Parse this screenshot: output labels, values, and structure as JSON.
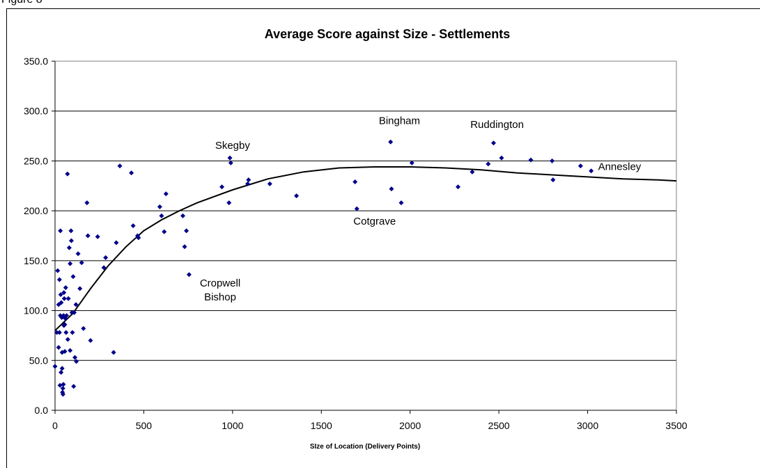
{
  "page": {
    "cut_label": "Figure 8"
  },
  "chart_data": {
    "type": "scatter",
    "title": "Average Score against Size - Settlements",
    "xlabel": "SIze of Location (Delivery Points)",
    "ylabel": "",
    "xlim": [
      0,
      3500
    ],
    "ylim": [
      0,
      350
    ],
    "x_ticks": [
      0,
      500,
      1000,
      1500,
      2000,
      2500,
      3000,
      3500
    ],
    "x_tick_labels": [
      "0",
      "500",
      "1000",
      "1500",
      "2000",
      "2500",
      "3000",
      "3500"
    ],
    "y_ticks": [
      0,
      50,
      100,
      150,
      200,
      250,
      300,
      350
    ],
    "y_tick_labels": [
      "0.0",
      "50.0",
      "100.0",
      "150.0",
      "200.0",
      "250.0",
      "300.0",
      "350.0"
    ],
    "grid": {
      "horizontal": true,
      "vertical": false
    },
    "marker_color": "#00008b",
    "trend_color": "#000000",
    "series": [
      {
        "points": [
          [
            0,
            44
          ],
          [
            10,
            78
          ],
          [
            15,
            140
          ],
          [
            20,
            106
          ],
          [
            20,
            63
          ],
          [
            25,
            131
          ],
          [
            25,
            78
          ],
          [
            28,
            25
          ],
          [
            30,
            180
          ],
          [
            30,
            95
          ],
          [
            32,
            116
          ],
          [
            34,
            38
          ],
          [
            35,
            108
          ],
          [
            38,
            93
          ],
          [
            40,
            58
          ],
          [
            40,
            42
          ],
          [
            42,
            18
          ],
          [
            44,
            22
          ],
          [
            45,
            16
          ],
          [
            47,
            26
          ],
          [
            48,
            95
          ],
          [
            50,
            118
          ],
          [
            50,
            85
          ],
          [
            52,
            112
          ],
          [
            55,
            86
          ],
          [
            55,
            59
          ],
          [
            58,
            92
          ],
          [
            60,
            123
          ],
          [
            62,
            78
          ],
          [
            65,
            95
          ],
          [
            70,
            237
          ],
          [
            72,
            71
          ],
          [
            75,
            112
          ],
          [
            80,
            163
          ],
          [
            85,
            60
          ],
          [
            85,
            147
          ],
          [
            90,
            180
          ],
          [
            92,
            170
          ],
          [
            95,
            98
          ],
          [
            98,
            78
          ],
          [
            102,
            134
          ],
          [
            105,
            24
          ],
          [
            108,
            98
          ],
          [
            112,
            53
          ],
          [
            118,
            106
          ],
          [
            120,
            49
          ],
          [
            130,
            157
          ],
          [
            140,
            122
          ],
          [
            150,
            148
          ],
          [
            160,
            82
          ],
          [
            180,
            208
          ],
          [
            185,
            175
          ],
          [
            200,
            70
          ],
          [
            240,
            174
          ],
          [
            275,
            143
          ],
          [
            285,
            153
          ],
          [
            330,
            58
          ],
          [
            345,
            168
          ],
          [
            365,
            245
          ],
          [
            430,
            238
          ],
          [
            440,
            185
          ],
          [
            465,
            175
          ],
          [
            470,
            173
          ],
          [
            590,
            204
          ],
          [
            600,
            195
          ],
          [
            615,
            179
          ],
          [
            625,
            217
          ],
          [
            720,
            195
          ],
          [
            730,
            164
          ],
          [
            740,
            180
          ],
          [
            755,
            136
          ],
          [
            940,
            224
          ],
          [
            980,
            208
          ],
          [
            985,
            253
          ],
          [
            990,
            248
          ],
          [
            1085,
            227
          ],
          [
            1090,
            231
          ],
          [
            1210,
            227
          ],
          [
            1360,
            215
          ],
          [
            1690,
            229
          ],
          [
            1700,
            202
          ],
          [
            1890,
            269
          ],
          [
            1895,
            222
          ],
          [
            1950,
            208
          ],
          [
            2010,
            248
          ],
          [
            2270,
            224
          ],
          [
            2440,
            247
          ],
          [
            2470,
            268
          ],
          [
            2515,
            253
          ],
          [
            2680,
            251
          ],
          [
            2800,
            250
          ],
          [
            2805,
            231
          ],
          [
            2960,
            245
          ],
          [
            3020,
            240
          ],
          [
            2350,
            239
          ]
        ]
      }
    ],
    "trendline": [
      [
        0,
        80
      ],
      [
        100,
        97
      ],
      [
        200,
        122
      ],
      [
        300,
        145
      ],
      [
        400,
        164
      ],
      [
        500,
        180
      ],
      [
        600,
        191
      ],
      [
        700,
        200
      ],
      [
        800,
        208
      ],
      [
        1000,
        221
      ],
      [
        1200,
        232
      ],
      [
        1400,
        239
      ],
      [
        1600,
        243
      ],
      [
        1800,
        244
      ],
      [
        2000,
        244
      ],
      [
        2200,
        243
      ],
      [
        2400,
        241
      ],
      [
        2600,
        238
      ],
      [
        2800,
        236
      ],
      [
        3000,
        234
      ],
      [
        3200,
        232
      ],
      [
        3400,
        231
      ],
      [
        3500,
        230
      ]
    ],
    "annotations": [
      {
        "lines": [
          "Skegby"
        ],
        "x": 1000,
        "y": 262
      },
      {
        "lines": [
          "Bingham"
        ],
        "x": 1940,
        "y": 287
      },
      {
        "lines": [
          "Ruddington"
        ],
        "x": 2490,
        "y": 283
      },
      {
        "lines": [
          "Annesley"
        ],
        "x": 3180,
        "y": 241
      },
      {
        "lines": [
          "Cotgrave"
        ],
        "x": 1800,
        "y": 186
      },
      {
        "lines": [
          "Cropwell",
          "Bishop"
        ],
        "x": 930,
        "y": 124
      }
    ]
  }
}
